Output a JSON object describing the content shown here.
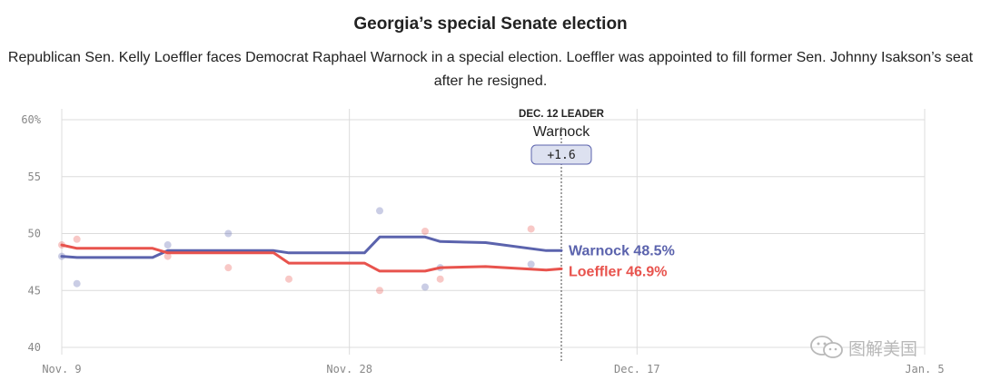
{
  "chart_data": {
    "type": "line",
    "title": "Georgia’s special Senate election",
    "subtitle": "Republican Sen. Kelly Loeffler faces Democrat Raphael Warnock in a special election. Loeffler was appointed to fill former Sen. Johnny Isakson’s seat after he resigned.",
    "xlabel": "",
    "ylabel": "",
    "ylim": [
      40,
      60
    ],
    "yticks": [
      {
        "value": 60,
        "label": "60%"
      },
      {
        "value": 55,
        "label": "55"
      },
      {
        "value": 50,
        "label": "50"
      },
      {
        "value": 45,
        "label": "45"
      },
      {
        "value": 40,
        "label": "40"
      }
    ],
    "xlim": [
      0,
      57
    ],
    "xticks": [
      {
        "day": 0,
        "label": "Nov. 9"
      },
      {
        "day": 19,
        "label": "Nov. 28"
      },
      {
        "day": 38,
        "label": "Dec. 17"
      },
      {
        "day": 57,
        "label": "Jan. 5"
      }
    ],
    "grid": true,
    "series": [
      {
        "name": "Warnock",
        "color": "#5b63ad",
        "end_label": "Warnock 48.5%",
        "line": [
          {
            "day": 0,
            "value": 48.0
          },
          {
            "day": 1,
            "value": 47.9
          },
          {
            "day": 6,
            "value": 47.9
          },
          {
            "day": 7,
            "value": 48.5
          },
          {
            "day": 14,
            "value": 48.5
          },
          {
            "day": 15,
            "value": 48.3
          },
          {
            "day": 20,
            "value": 48.3
          },
          {
            "day": 21,
            "value": 49.7
          },
          {
            "day": 24,
            "value": 49.7
          },
          {
            "day": 25,
            "value": 49.3
          },
          {
            "day": 28,
            "value": 49.2
          },
          {
            "day": 32,
            "value": 48.5
          },
          {
            "day": 33,
            "value": 48.5
          }
        ],
        "polls": [
          {
            "day": 0,
            "value": 48.0
          },
          {
            "day": 1,
            "value": 45.6
          },
          {
            "day": 7,
            "value": 49.0
          },
          {
            "day": 11,
            "value": 50.0
          },
          {
            "day": 21,
            "value": 52.0
          },
          {
            "day": 24,
            "value": 45.3
          },
          {
            "day": 25,
            "value": 47.0
          },
          {
            "day": 31,
            "value": 47.3
          }
        ]
      },
      {
        "name": "Loeffler",
        "color": "#e8534d",
        "end_label": "Loeffler 46.9%",
        "line": [
          {
            "day": 0,
            "value": 49.0
          },
          {
            "day": 1,
            "value": 48.7
          },
          {
            "day": 6,
            "value": 48.7
          },
          {
            "day": 7,
            "value": 48.3
          },
          {
            "day": 14,
            "value": 48.3
          },
          {
            "day": 15,
            "value": 47.4
          },
          {
            "day": 20,
            "value": 47.4
          },
          {
            "day": 21,
            "value": 46.7
          },
          {
            "day": 24,
            "value": 46.7
          },
          {
            "day": 25,
            "value": 47.0
          },
          {
            "day": 28,
            "value": 47.1
          },
          {
            "day": 32,
            "value": 46.8
          },
          {
            "day": 33,
            "value": 46.9
          }
        ],
        "polls": [
          {
            "day": 0,
            "value": 49.0
          },
          {
            "day": 1,
            "value": 49.5
          },
          {
            "day": 7,
            "value": 48.0
          },
          {
            "day": 11,
            "value": 47.0
          },
          {
            "day": 15,
            "value": 46.0
          },
          {
            "day": 21,
            "value": 45.0
          },
          {
            "day": 24,
            "value": 50.2
          },
          {
            "day": 25,
            "value": 46.0
          },
          {
            "day": 31,
            "value": 50.4
          }
        ]
      }
    ],
    "annotation": {
      "day": 33,
      "heading": "DEC. 12 LEADER",
      "leader": "Warnock",
      "margin": "+1.6"
    }
  },
  "watermark": {
    "text": "图解美国",
    "icon": "wechat-icon"
  }
}
